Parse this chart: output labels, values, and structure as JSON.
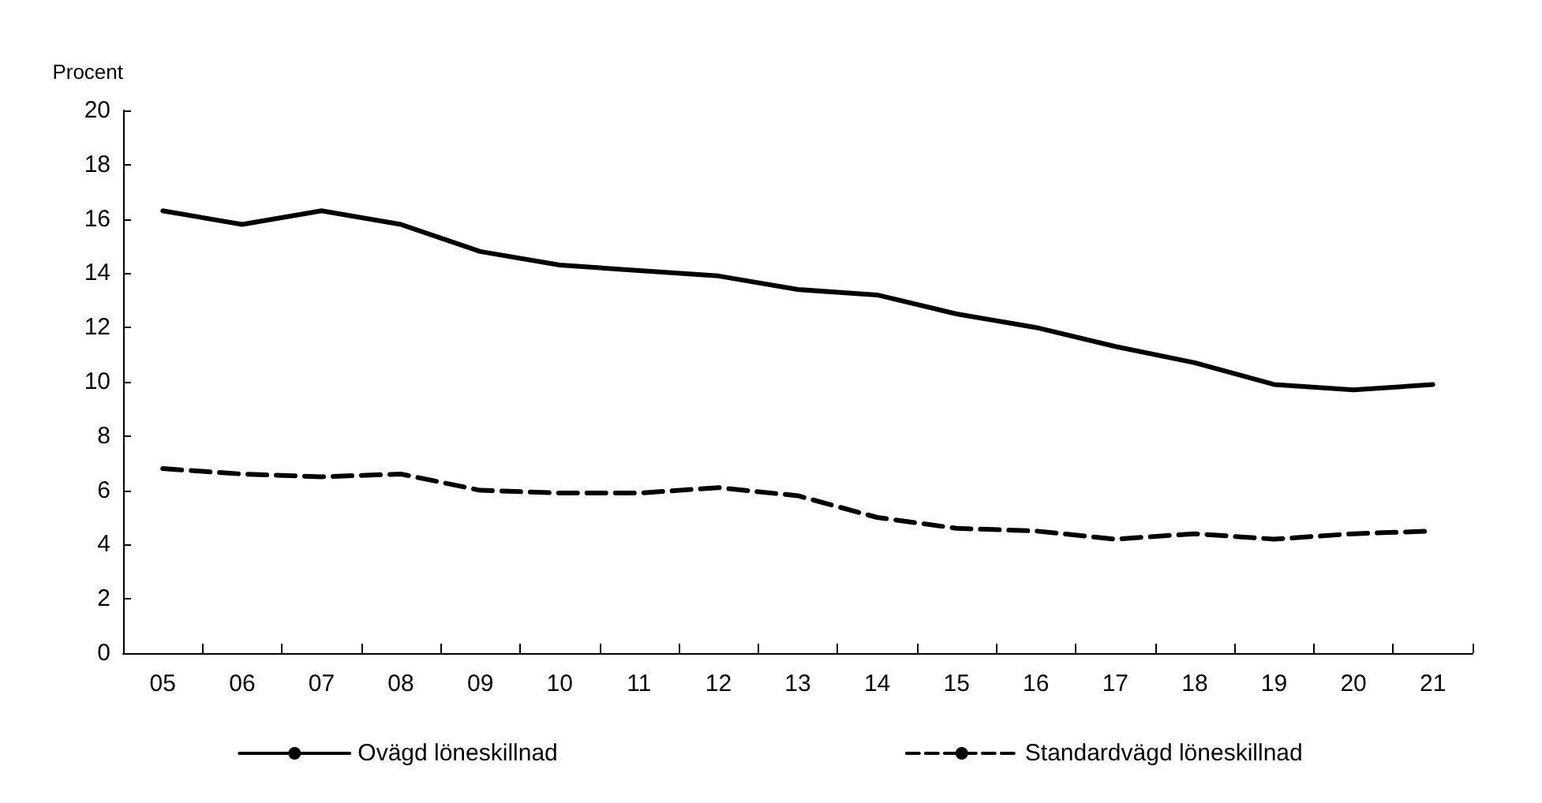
{
  "chart_data": {
    "type": "line",
    "ylabel": "Procent",
    "categories": [
      "05",
      "06",
      "07",
      "08",
      "09",
      "10",
      "11",
      "12",
      "13",
      "14",
      "15",
      "16",
      "17",
      "18",
      "19",
      "20",
      "21"
    ],
    "series": [
      {
        "name": "Ovägd löneskillnad",
        "color": "#000000",
        "line_style": "solid",
        "values": [
          16.3,
          15.8,
          16.3,
          15.8,
          14.8,
          14.3,
          14.1,
          13.9,
          13.4,
          13.2,
          12.5,
          12.0,
          11.3,
          10.7,
          9.9,
          9.7,
          9.9
        ]
      },
      {
        "name": "Standardvägd löneskillnad",
        "color": "#000000",
        "line_style": "dashed",
        "values": [
          6.8,
          6.6,
          6.5,
          6.6,
          6.0,
          5.9,
          5.9,
          6.1,
          5.8,
          5.0,
          4.6,
          4.5,
          4.2,
          4.4,
          4.2,
          4.4,
          4.5
        ]
      }
    ],
    "ylim": [
      0,
      20
    ],
    "yticks": [
      0,
      2,
      4,
      6,
      8,
      10,
      12,
      14,
      16,
      18,
      20
    ],
    "grid": false,
    "legend": "bottom",
    "marker": "none"
  }
}
